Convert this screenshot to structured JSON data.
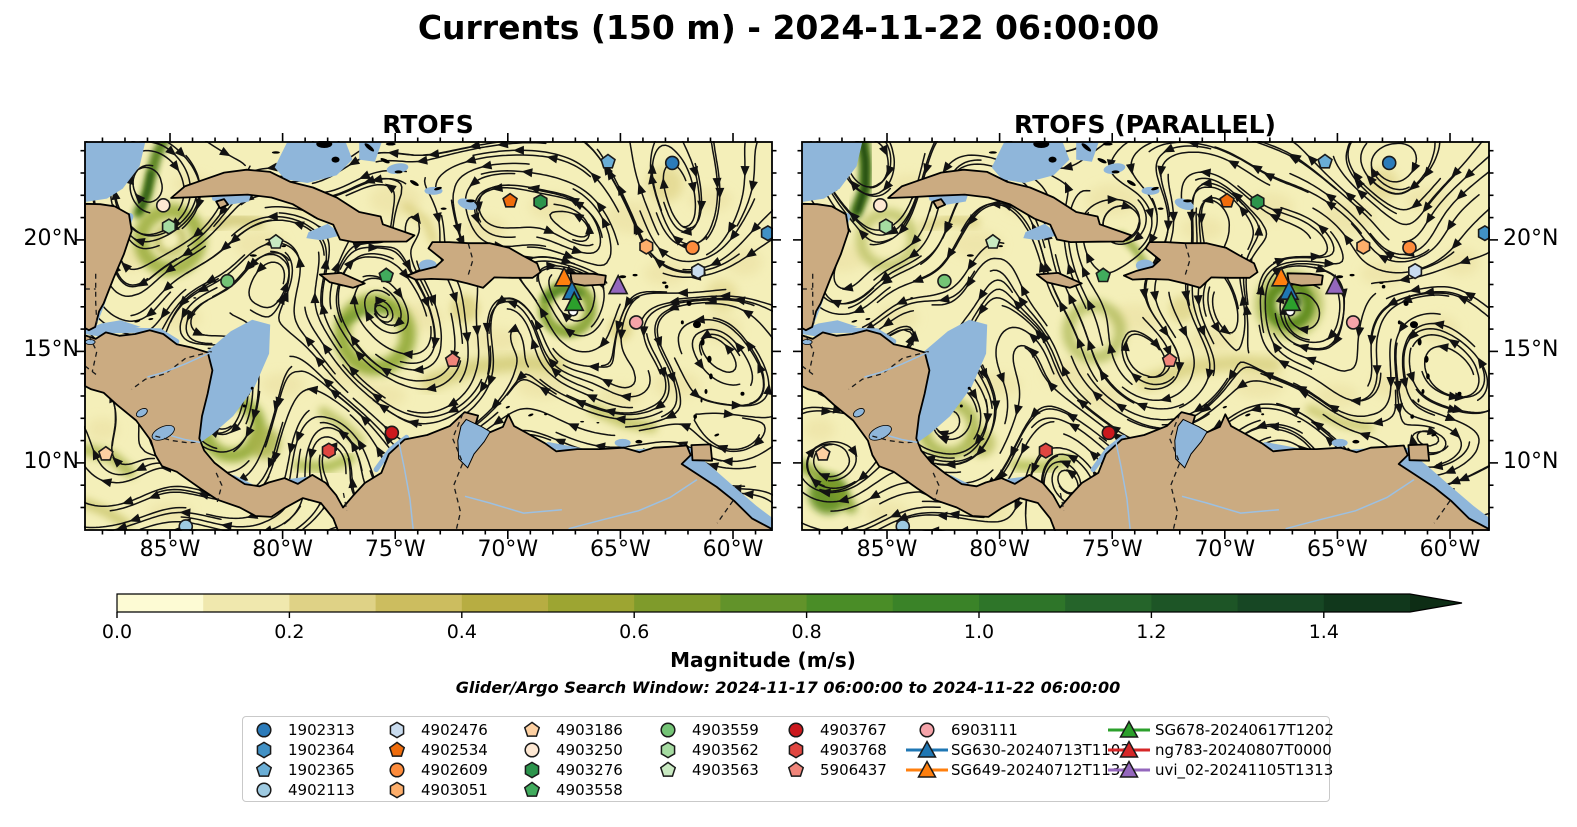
{
  "title": "Currents (150 m) - 2024-11-22 06:00:00",
  "panels": [
    {
      "title": "RTOFS"
    },
    {
      "title": "RTOFS (PARALLEL)"
    }
  ],
  "axes": {
    "x_ticks": [
      "85°W",
      "80°W",
      "75°W",
      "70°W",
      "65°W",
      "60°W"
    ],
    "y_ticks": [
      "20°N",
      "15°N",
      "10°N"
    ]
  },
  "colorbar": {
    "label": "Magnitude (m/s)",
    "ticks": [
      "0.0",
      "0.2",
      "0.4",
      "0.6",
      "0.8",
      "1.0",
      "1.2",
      "1.4"
    ],
    "tick_values": [
      0.0,
      0.2,
      0.4,
      0.6,
      0.8,
      1.0,
      1.2,
      1.4
    ],
    "max_value": 1.5,
    "colors": [
      "#fdfbd4",
      "#f0e8ae",
      "#dfd286",
      "#ccbd5f",
      "#b7ad42",
      "#9da532",
      "#7f9b2b",
      "#62932a",
      "#4a8d27",
      "#3a8328",
      "#2e7529",
      "#25642a",
      "#1d5526",
      "#174724",
      "#11381c"
    ],
    "arrow_color": "#0d2d15"
  },
  "subtitle": "Glider/Argo Search Window: 2024-11-17 06:00:00 to 2024-11-22 06:00:00",
  "map_colors": {
    "land": "#cbab81",
    "shallow_water": "#8fb6da",
    "ocean_base": "#f4efb9",
    "coastline": "#000000",
    "river": "#9cc0e2",
    "streamline": "#121212"
  },
  "legend": {
    "entries": [
      {
        "label": "1902313",
        "shape": "circle",
        "color": "#2b7bba"
      },
      {
        "label": "1902364",
        "shape": "hexagon",
        "color": "#4191c5"
      },
      {
        "label": "1902365",
        "shape": "pentagon",
        "color": "#6aaed6"
      },
      {
        "label": "4902113",
        "shape": "circle",
        "color": "#9ecae1"
      },
      {
        "label": "4902476",
        "shape": "hexagon",
        "color": "#c9dcef"
      },
      {
        "label": "4902534",
        "shape": "pentagon",
        "color": "#ef6c0c"
      },
      {
        "label": "4902609",
        "shape": "circle",
        "color": "#fd8c3c"
      },
      {
        "label": "4903051",
        "shape": "hexagon",
        "color": "#fdae6b"
      },
      {
        "label": "4903186",
        "shape": "pentagon",
        "color": "#fdd0a2"
      },
      {
        "label": "4903250",
        "shape": "circle",
        "color": "#fee8d3"
      },
      {
        "label": "4903276",
        "shape": "hexagon",
        "color": "#2c944c"
      },
      {
        "label": "4903558",
        "shape": "pentagon",
        "color": "#41ab5d"
      },
      {
        "label": "4903559",
        "shape": "circle",
        "color": "#74c476"
      },
      {
        "label": "4903562",
        "shape": "hexagon",
        "color": "#a5dba1"
      },
      {
        "label": "4903563",
        "shape": "pentagon",
        "color": "#c9eac2"
      },
      {
        "label": "4903767",
        "shape": "circle",
        "color": "#cb181d"
      },
      {
        "label": "4903768",
        "shape": "hexagon",
        "color": "#e04640"
      },
      {
        "label": "5906437",
        "shape": "pentagon",
        "color": "#f0857a"
      },
      {
        "label": "6903111",
        "shape": "circle",
        "color": "#f5a3a9"
      },
      {
        "label": "SG630-20240713T1103",
        "shape": "triangle",
        "color": "#1f77b4"
      },
      {
        "label": "SG649-20240712T1133",
        "shape": "triangle",
        "color": "#ff7f0e"
      },
      {
        "label": "SG678-20240617T1202",
        "shape": "triangle",
        "color": "#2ca02c"
      },
      {
        "label": "ng783-20240807T0000",
        "shape": "triangle",
        "color": "#d62728"
      },
      {
        "label": "uvi_02-20241105T1313",
        "shape": "triangle",
        "color": "#9467bd"
      }
    ]
  },
  "markers": [
    {
      "id": "4903250",
      "shape": "circle",
      "color": "#fee8d3",
      "lon": -85.3,
      "lat": 21.55
    },
    {
      "id": "4903562",
      "shape": "hexagon",
      "color": "#a5dba1",
      "lon": -85.05,
      "lat": 20.6
    },
    {
      "id": "4903563",
      "shape": "pentagon",
      "color": "#c9eac2",
      "lon": -80.3,
      "lat": 19.9
    },
    {
      "id": "4903559",
      "shape": "circle",
      "color": "#74c476",
      "lon": -82.45,
      "lat": 18.15
    },
    {
      "id": "4903558",
      "shape": "pentagon",
      "color": "#41ab5d",
      "lon": -75.4,
      "lat": 18.4
    },
    {
      "id": "4903186",
      "shape": "pentagon",
      "color": "#fdd0a2",
      "lon": -87.85,
      "lat": 10.4
    },
    {
      "id": "4903768",
      "shape": "hexagon",
      "color": "#e04640",
      "lon": -77.95,
      "lat": 10.55
    },
    {
      "id": "4903767",
      "shape": "circle",
      "color": "#cb181d",
      "lon": -75.15,
      "lat": 11.35
    },
    {
      "id": "4902113",
      "shape": "circle",
      "color": "#9ecae1",
      "lon": -84.3,
      "lat": 7.15
    },
    {
      "id": "1902365",
      "shape": "pentagon",
      "color": "#6aaed6",
      "lon": -65.55,
      "lat": 23.5
    },
    {
      "id": "1902313",
      "shape": "circle",
      "color": "#2b7bba",
      "lon": -62.7,
      "lat": 23.45
    },
    {
      "id": "1902364",
      "shape": "hexagon",
      "color": "#4191c5",
      "lon": -58.45,
      "lat": 20.3
    },
    {
      "id": "4902534",
      "shape": "pentagon",
      "color": "#ef6c0c",
      "lon": -69.9,
      "lat": 21.75
    },
    {
      "id": "4903276",
      "shape": "hexagon",
      "color": "#2c944c",
      "lon": -68.55,
      "lat": 21.7
    },
    {
      "id": "4903051",
      "shape": "hexagon",
      "color": "#fdae6b",
      "lon": -63.85,
      "lat": 19.7
    },
    {
      "id": "4902609",
      "shape": "circle",
      "color": "#fd8c3c",
      "lon": -61.8,
      "lat": 19.65
    },
    {
      "id": "4902476",
      "shape": "hexagon",
      "color": "#c9dcef",
      "lon": -61.55,
      "lat": 18.6
    },
    {
      "id": "6903111",
      "shape": "circle",
      "color": "#f5a3a9",
      "lon": -64.3,
      "lat": 16.3
    },
    {
      "id": "5906437",
      "shape": "pentagon",
      "color": "#f0857a",
      "lon": -72.45,
      "lat": 14.6
    },
    {
      "id": "",
      "shape": "dot",
      "color": "#ffffff",
      "lon": -67.1,
      "lat": 16.8
    },
    {
      "id": "SG649-20240712T1133",
      "shape": "triangle",
      "color": "#ff7f0e",
      "lon": -67.5,
      "lat": 18.3
    },
    {
      "id": "uvi_02-20241105T1313",
      "shape": "triangle",
      "color": "#9467bd",
      "lon": -65.1,
      "lat": 17.95
    },
    {
      "id": "SG630-20240713T1103",
      "shape": "triangle",
      "color": "#1f77b4",
      "lon": -67.15,
      "lat": 17.7
    },
    {
      "id": "SG678-20240617T1202",
      "shape": "triangle",
      "color": "#2ca02c",
      "lon": -67.05,
      "lat": 17.2
    }
  ],
  "chart_data": {
    "type": "heatmap",
    "title": "Currents (150 m) - 2024-11-22 06:00:00",
    "field": "ocean current speed at 150 m depth, with streamlines",
    "units": "m/s",
    "subplots": [
      {
        "title": "RTOFS"
      },
      {
        "title": "RTOFS (PARALLEL)"
      }
    ],
    "lon_range": [
      -88.8,
      -58.3
    ],
    "lat_range": [
      7.0,
      24.4
    ],
    "colorbar_label": "Magnitude (m/s)",
    "colorbar_ticks": [
      0.0,
      0.2,
      0.4,
      0.6,
      0.8,
      1.0,
      1.2,
      1.4
    ],
    "colorbar_max": 1.5,
    "search_window": "2024-11-17 06:00:00 to 2024-11-22 06:00:00",
    "platforms": [
      {
        "id": "1902313",
        "kind": "argo",
        "lon": -62.7,
        "lat": 23.45
      },
      {
        "id": "1902364",
        "kind": "argo",
        "lon": -58.45,
        "lat": 20.3
      },
      {
        "id": "1902365",
        "kind": "argo",
        "lon": -65.55,
        "lat": 23.5
      },
      {
        "id": "4902113",
        "kind": "argo",
        "lon": -84.3,
        "lat": 7.15
      },
      {
        "id": "4902476",
        "kind": "argo",
        "lon": -61.55,
        "lat": 18.6
      },
      {
        "id": "4902534",
        "kind": "argo",
        "lon": -69.9,
        "lat": 21.75
      },
      {
        "id": "4902609",
        "kind": "argo",
        "lon": -61.8,
        "lat": 19.65
      },
      {
        "id": "4903051",
        "kind": "argo",
        "lon": -63.85,
        "lat": 19.7
      },
      {
        "id": "4903186",
        "kind": "argo",
        "lon": -87.85,
        "lat": 10.4
      },
      {
        "id": "4903250",
        "kind": "argo",
        "lon": -85.3,
        "lat": 21.55
      },
      {
        "id": "4903276",
        "kind": "argo",
        "lon": -68.55,
        "lat": 21.7
      },
      {
        "id": "4903558",
        "kind": "argo",
        "lon": -75.4,
        "lat": 18.4
      },
      {
        "id": "4903559",
        "kind": "argo",
        "lon": -82.45,
        "lat": 18.15
      },
      {
        "id": "4903562",
        "kind": "argo",
        "lon": -85.05,
        "lat": 20.6
      },
      {
        "id": "4903563",
        "kind": "argo",
        "lon": -80.3,
        "lat": 19.9
      },
      {
        "id": "4903767",
        "kind": "argo",
        "lon": -75.15,
        "lat": 11.35
      },
      {
        "id": "4903768",
        "kind": "argo",
        "lon": -77.95,
        "lat": 10.55
      },
      {
        "id": "5906437",
        "kind": "argo",
        "lon": -72.45,
        "lat": 14.6
      },
      {
        "id": "6903111",
        "kind": "argo",
        "lon": -64.3,
        "lat": 16.3
      },
      {
        "id": "SG630-20240713T1103",
        "kind": "glider",
        "lon": -67.15,
        "lat": 17.7
      },
      {
        "id": "SG649-20240712T1133",
        "kind": "glider",
        "lon": -67.5,
        "lat": 18.3
      },
      {
        "id": "SG678-20240617T1202",
        "kind": "glider",
        "lon": -67.05,
        "lat": 17.2
      },
      {
        "id": "ng783-20240807T0000",
        "kind": "glider",
        "lon": -66.95,
        "lat": 17.25
      },
      {
        "id": "uvi_02-20241105T1313",
        "kind": "glider",
        "lon": -65.1,
        "lat": 17.95
      }
    ]
  }
}
